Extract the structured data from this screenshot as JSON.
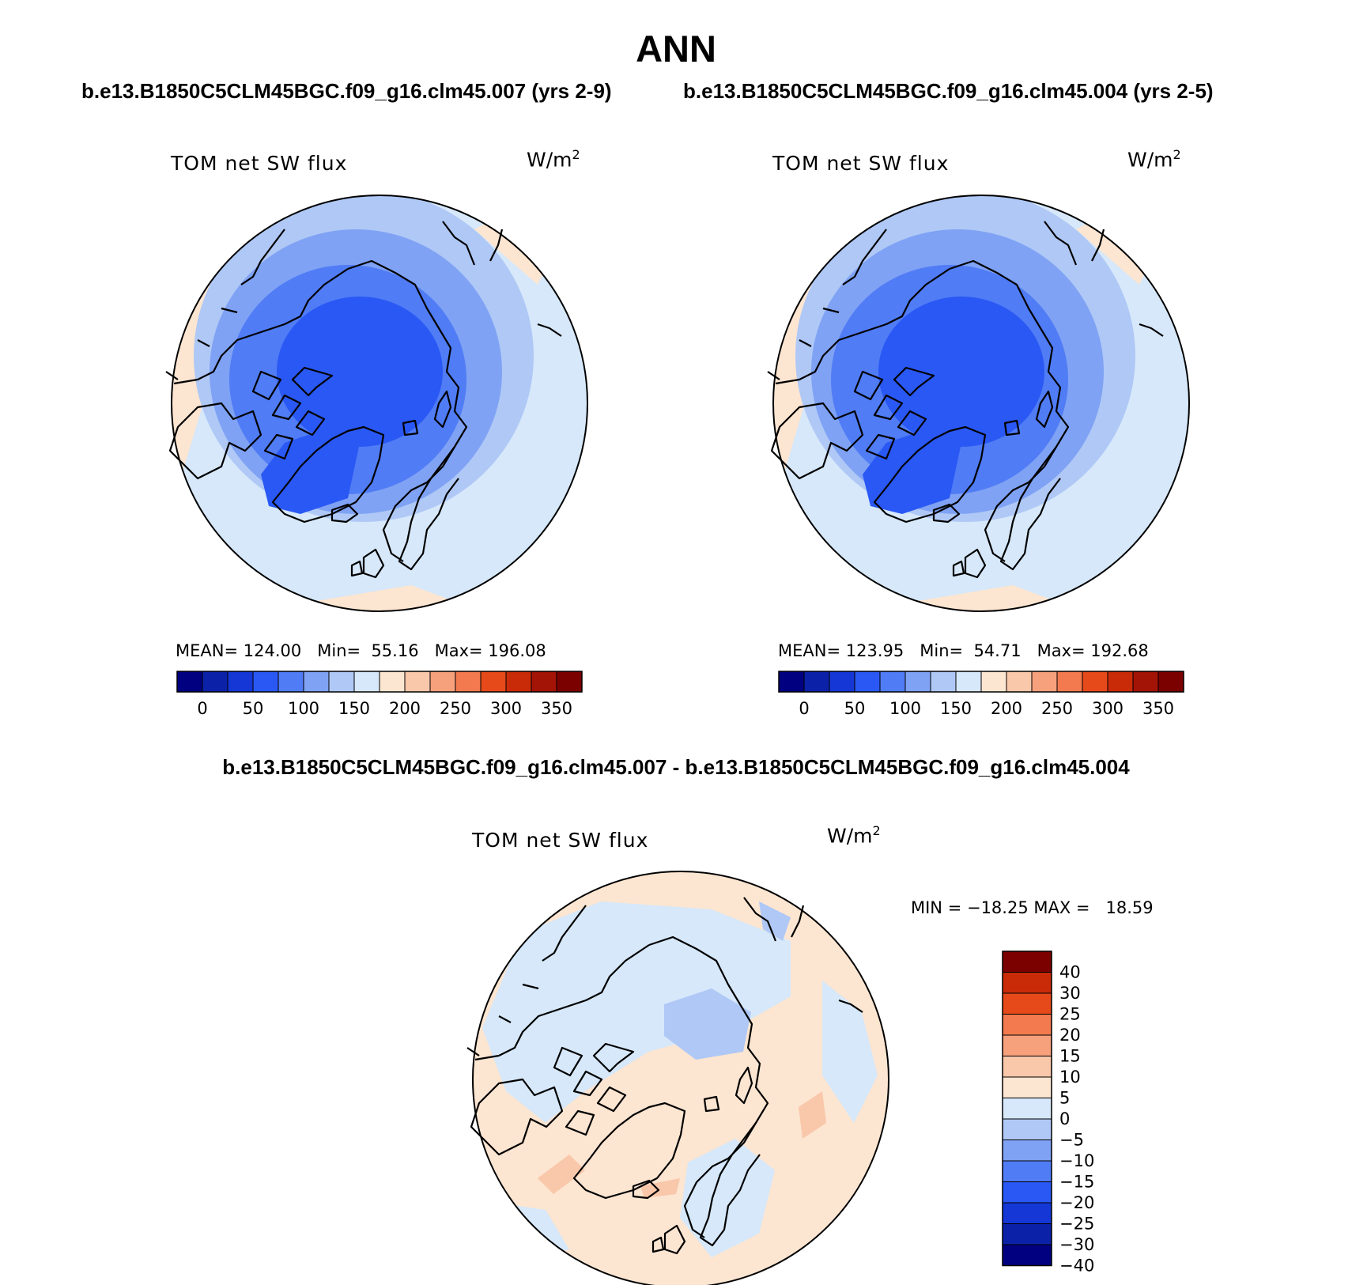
{
  "main_title": "ANN",
  "case1_title": "b.e13.B1850C5CLM45BGC.f09_g16.clm45.007 (yrs 2-9)",
  "case2_title": "b.e13.B1850C5CLM45BGC.f09_g16.clm45.004 (yrs 2-5)",
  "diff_title": "b.e13.B1850C5CLM45BGC.f09_g16.clm45.007 - b.e13.B1850C5CLM45BGC.f09_g16.clm45.004",
  "panels": [
    {
      "variable": "TOM net SW flux",
      "unit": "W/m",
      "unit_sup": "2",
      "stats": "MEAN= 124.00   Min=  55.16   Max= 196.08"
    },
    {
      "variable": "TOM net SW flux",
      "unit": "W/m",
      "unit_sup": "2",
      "stats": "MEAN= 123.95   Min=  54.71   Max= 192.68"
    },
    {
      "variable": "TOM net SW flux",
      "unit": "W/m",
      "unit_sup": "2",
      "stats": "MIN = −18.25 MAX =   18.59"
    }
  ],
  "abs_colorbar": {
    "colors": [
      "#000080",
      "#0b22a8",
      "#1437d6",
      "#2a58f4",
      "#507cf5",
      "#7fa2f4",
      "#afc8f6",
      "#d6e8fa",
      "#fce5d1",
      "#f9c7aa",
      "#f6a07c",
      "#f37a4e",
      "#e64a1a",
      "#c92b08",
      "#a31306",
      "#7b0000"
    ],
    "labels": [
      "0",
      "50",
      "100",
      "150",
      "200",
      "250",
      "300",
      "350"
    ]
  },
  "diff_colorbar": {
    "colors": [
      "#000080",
      "#0b22a8",
      "#1437d6",
      "#2a58f4",
      "#507cf5",
      "#7fa2f4",
      "#afc8f6",
      "#d6e8fa",
      "#fce5d1",
      "#f9c7aa",
      "#f6a07c",
      "#f37a4e",
      "#e64a1a",
      "#c92b08",
      "#7b0000"
    ],
    "labels": [
      "40",
      "30",
      "25",
      "20",
      "15",
      "10",
      "5",
      "0",
      "−5",
      "−10",
      "−15",
      "−20",
      "−25",
      "−30",
      "−40"
    ]
  }
}
